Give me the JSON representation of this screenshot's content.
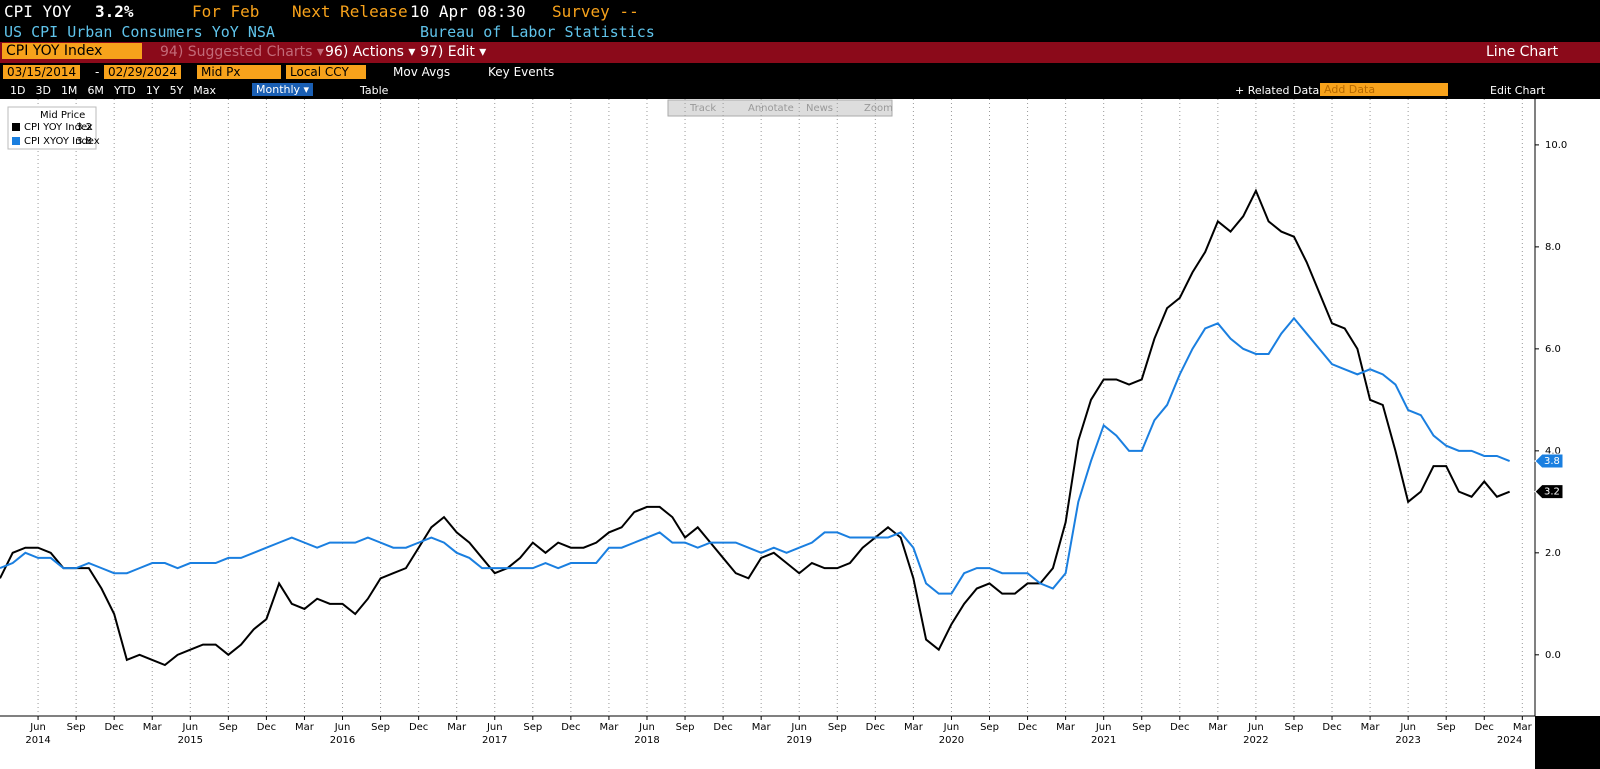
{
  "header": {
    "ticker": "CPI YOY",
    "last": "3.2%",
    "period": "For Feb",
    "next_release_label": "Next Release",
    "next_release": "10 Apr 08:30",
    "survey": "Survey --",
    "description": "US CPI Urban Consumers YoY NSA",
    "source": "Bureau of Labor Statistics"
  },
  "menu": {
    "security": "CPI YOY Index",
    "suggested": "94) Suggested Charts ▾",
    "actions": "96) Actions ▾",
    "edit": "97) Edit ▾",
    "chart_type": "Line Chart"
  },
  "settings": {
    "start": "03/15/2014",
    "dash": "-",
    "end": "02/29/2024",
    "field": "Mid Px",
    "currency": "Local CCY",
    "mov_avgs": "Mov Avgs",
    "key_events": "Key Events"
  },
  "periods": [
    "1D",
    "3D",
    "1M",
    "6M",
    "YTD",
    "1Y",
    "5Y",
    "Max"
  ],
  "toolbar": {
    "frequency": "Monthly ▾",
    "table": "Table",
    "related": "+ Related Data",
    "add_data": "Add Data",
    "edit_chart": "Edit Chart"
  },
  "tools": [
    "Track",
    "Annotate",
    "News",
    "Zoom"
  ],
  "chart_data": {
    "type": "line",
    "legend_title": "Mid Price",
    "x": [
      "2014-03",
      "2014-04",
      "2014-05",
      "2014-06",
      "2014-07",
      "2014-08",
      "2014-09",
      "2014-10",
      "2014-11",
      "2014-12",
      "2015-01",
      "2015-02",
      "2015-03",
      "2015-04",
      "2015-05",
      "2015-06",
      "2015-07",
      "2015-08",
      "2015-09",
      "2015-10",
      "2015-11",
      "2015-12",
      "2016-01",
      "2016-02",
      "2016-03",
      "2016-04",
      "2016-05",
      "2016-06",
      "2016-07",
      "2016-08",
      "2016-09",
      "2016-10",
      "2016-11",
      "2016-12",
      "2017-01",
      "2017-02",
      "2017-03",
      "2017-04",
      "2017-05",
      "2017-06",
      "2017-07",
      "2017-08",
      "2017-09",
      "2017-10",
      "2017-11",
      "2017-12",
      "2018-01",
      "2018-02",
      "2018-03",
      "2018-04",
      "2018-05",
      "2018-06",
      "2018-07",
      "2018-08",
      "2018-09",
      "2018-10",
      "2018-11",
      "2018-12",
      "2019-01",
      "2019-02",
      "2019-03",
      "2019-04",
      "2019-05",
      "2019-06",
      "2019-07",
      "2019-08",
      "2019-09",
      "2019-10",
      "2019-11",
      "2019-12",
      "2020-01",
      "2020-02",
      "2020-03",
      "2020-04",
      "2020-05",
      "2020-06",
      "2020-07",
      "2020-08",
      "2020-09",
      "2020-10",
      "2020-11",
      "2020-12",
      "2021-01",
      "2021-02",
      "2021-03",
      "2021-04",
      "2021-05",
      "2021-06",
      "2021-07",
      "2021-08",
      "2021-09",
      "2021-10",
      "2021-11",
      "2021-12",
      "2022-01",
      "2022-02",
      "2022-03",
      "2022-04",
      "2022-05",
      "2022-06",
      "2022-07",
      "2022-08",
      "2022-09",
      "2022-10",
      "2022-11",
      "2022-12",
      "2023-01",
      "2023-02",
      "2023-03",
      "2023-04",
      "2023-05",
      "2023-06",
      "2023-07",
      "2023-08",
      "2023-09",
      "2023-10",
      "2023-11",
      "2023-12",
      "2024-01",
      "2024-02"
    ],
    "series": [
      {
        "name": "CPI YOY Index",
        "color": "#000000",
        "values": [
          1.5,
          2.0,
          2.1,
          2.1,
          2.0,
          1.7,
          1.7,
          1.7,
          1.3,
          0.8,
          -0.1,
          0.0,
          -0.1,
          -0.2,
          0.0,
          0.1,
          0.2,
          0.2,
          0.0,
          0.2,
          0.5,
          0.7,
          1.4,
          1.0,
          0.9,
          1.1,
          1.0,
          1.0,
          0.8,
          1.1,
          1.5,
          1.6,
          1.7,
          2.1,
          2.5,
          2.7,
          2.4,
          2.2,
          1.9,
          1.6,
          1.7,
          1.9,
          2.2,
          2.0,
          2.2,
          2.1,
          2.1,
          2.2,
          2.4,
          2.5,
          2.8,
          2.9,
          2.9,
          2.7,
          2.3,
          2.5,
          2.2,
          1.9,
          1.6,
          1.5,
          1.9,
          2.0,
          1.8,
          1.6,
          1.8,
          1.7,
          1.7,
          1.8,
          2.1,
          2.3,
          2.5,
          2.3,
          1.5,
          0.3,
          0.1,
          0.6,
          1.0,
          1.3,
          1.4,
          1.2,
          1.2,
          1.4,
          1.4,
          1.7,
          2.6,
          4.2,
          5.0,
          5.4,
          5.4,
          5.3,
          5.4,
          6.2,
          6.8,
          7.0,
          7.5,
          7.9,
          8.5,
          8.3,
          8.6,
          9.1,
          8.5,
          8.3,
          8.2,
          7.7,
          7.1,
          6.5,
          6.4,
          6.0,
          5.0,
          4.9,
          4.0,
          3.0,
          3.2,
          3.7,
          3.7,
          3.2,
          3.1,
          3.4,
          3.1,
          3.2
        ]
      },
      {
        "name": "CPI XYOY Index",
        "color": "#1a7fe0",
        "values": [
          1.7,
          1.8,
          2.0,
          1.9,
          1.9,
          1.7,
          1.7,
          1.8,
          1.7,
          1.6,
          1.6,
          1.7,
          1.8,
          1.8,
          1.7,
          1.8,
          1.8,
          1.8,
          1.9,
          1.9,
          2.0,
          2.1,
          2.2,
          2.3,
          2.2,
          2.1,
          2.2,
          2.2,
          2.2,
          2.3,
          2.2,
          2.1,
          2.1,
          2.2,
          2.3,
          2.2,
          2.0,
          1.9,
          1.7,
          1.7,
          1.7,
          1.7,
          1.7,
          1.8,
          1.7,
          1.8,
          1.8,
          1.8,
          2.1,
          2.1,
          2.2,
          2.3,
          2.4,
          2.2,
          2.2,
          2.1,
          2.2,
          2.2,
          2.2,
          2.1,
          2.0,
          2.1,
          2.0,
          2.1,
          2.2,
          2.4,
          2.4,
          2.3,
          2.3,
          2.3,
          2.3,
          2.4,
          2.1,
          1.4,
          1.2,
          1.2,
          1.6,
          1.7,
          1.7,
          1.6,
          1.6,
          1.6,
          1.4,
          1.3,
          1.6,
          3.0,
          3.8,
          4.5,
          4.3,
          4.0,
          4.0,
          4.6,
          4.9,
          5.5,
          6.0,
          6.4,
          6.5,
          6.2,
          6.0,
          5.9,
          5.9,
          6.3,
          6.6,
          6.3,
          6.0,
          5.7,
          5.6,
          5.5,
          5.6,
          5.5,
          5.3,
          4.8,
          4.7,
          4.3,
          4.1,
          4.0,
          4.0,
          3.9,
          3.9,
          3.8
        ]
      }
    ],
    "xlim": [
      "2014-03",
      "2024-04"
    ],
    "xticks": [
      {
        "value": "2014-06",
        "label": "Jun"
      },
      {
        "value": "2014-09",
        "label": "Sep"
      },
      {
        "value": "2014-12",
        "label": "Dec"
      },
      {
        "value": "2015-03",
        "label": "Mar"
      },
      {
        "value": "2015-06",
        "label": "Jun"
      },
      {
        "value": "2015-09",
        "label": "Sep"
      },
      {
        "value": "2015-12",
        "label": "Dec"
      },
      {
        "value": "2016-03",
        "label": "Mar"
      },
      {
        "value": "2016-06",
        "label": "Jun"
      },
      {
        "value": "2016-09",
        "label": "Sep"
      },
      {
        "value": "2016-12",
        "label": "Dec"
      },
      {
        "value": "2017-03",
        "label": "Mar"
      },
      {
        "value": "2017-06",
        "label": "Jun"
      },
      {
        "value": "2017-09",
        "label": "Sep"
      },
      {
        "value": "2017-12",
        "label": "Dec"
      },
      {
        "value": "2018-03",
        "label": "Mar"
      },
      {
        "value": "2018-06",
        "label": "Jun"
      },
      {
        "value": "2018-09",
        "label": "Sep"
      },
      {
        "value": "2018-12",
        "label": "Dec"
      },
      {
        "value": "2019-03",
        "label": "Mar"
      },
      {
        "value": "2019-06",
        "label": "Jun"
      },
      {
        "value": "2019-09",
        "label": "Sep"
      },
      {
        "value": "2019-12",
        "label": "Dec"
      },
      {
        "value": "2020-03",
        "label": "Mar"
      },
      {
        "value": "2020-06",
        "label": "Jun"
      },
      {
        "value": "2020-09",
        "label": "Sep"
      },
      {
        "value": "2020-12",
        "label": "Dec"
      },
      {
        "value": "2021-03",
        "label": "Mar"
      },
      {
        "value": "2021-06",
        "label": "Jun"
      },
      {
        "value": "2021-09",
        "label": "Sep"
      },
      {
        "value": "2021-12",
        "label": "Dec"
      },
      {
        "value": "2022-03",
        "label": "Mar"
      },
      {
        "value": "2022-06",
        "label": "Jun"
      },
      {
        "value": "2022-09",
        "label": "Sep"
      },
      {
        "value": "2022-12",
        "label": "Dec"
      },
      {
        "value": "2023-03",
        "label": "Mar"
      },
      {
        "value": "2023-06",
        "label": "Jun"
      },
      {
        "value": "2023-09",
        "label": "Sep"
      },
      {
        "value": "2023-12",
        "label": "Dec"
      },
      {
        "value": "2024-03",
        "label": "Mar"
      }
    ],
    "year_labels": [
      {
        "value": "2014-06",
        "label": "2014"
      },
      {
        "value": "2015-06",
        "label": "2015"
      },
      {
        "value": "2016-06",
        "label": "2016"
      },
      {
        "value": "2017-06",
        "label": "2017"
      },
      {
        "value": "2018-06",
        "label": "2018"
      },
      {
        "value": "2019-06",
        "label": "2019"
      },
      {
        "value": "2020-06",
        "label": "2020"
      },
      {
        "value": "2021-06",
        "label": "2021"
      },
      {
        "value": "2022-06",
        "label": "2022"
      },
      {
        "value": "2023-06",
        "label": "2023"
      },
      {
        "value": "2024-02",
        "label": "2024"
      }
    ],
    "ylim": [
      -1.2,
      10.9
    ],
    "yticks": [
      {
        "value": 0,
        "label": "0.0"
      },
      {
        "value": 2,
        "label": "2.0"
      },
      {
        "value": 4,
        "label": "4.0"
      },
      {
        "value": 6,
        "label": "6.0"
      },
      {
        "value": 8,
        "label": "8.0"
      },
      {
        "value": 10,
        "label": "10.0"
      }
    ],
    "grid": true
  }
}
